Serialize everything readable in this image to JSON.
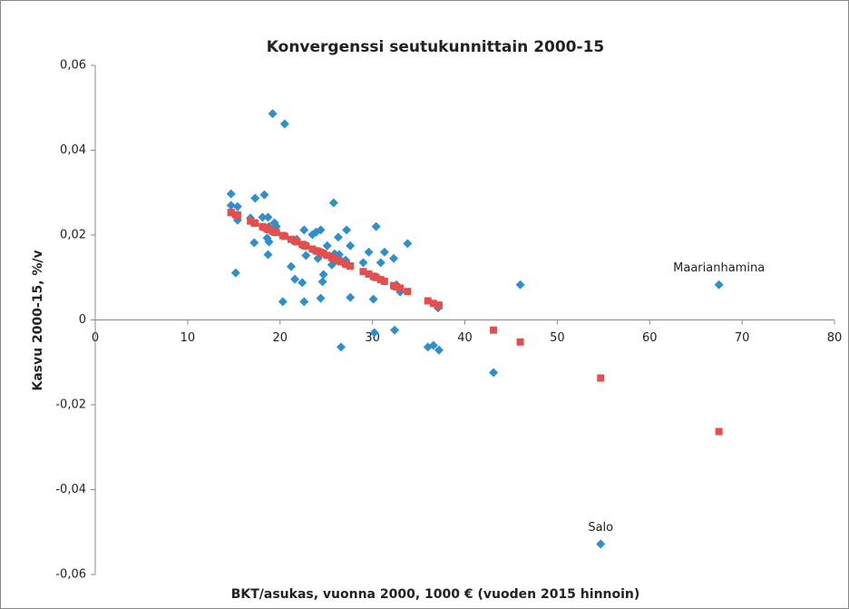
{
  "chart_data": {
    "type": "scatter",
    "title": "Konvergenssi seutukunnittain 2000-15",
    "x_label": "BKT/asukas, vuonna 2000, 1000 € (vuoden 2015 hinnoin)",
    "y_label": "Kasvu 2000-15, %/v",
    "xlim": [
      0,
      80
    ],
    "xticks": [
      0,
      10,
      20,
      30,
      40,
      50,
      60,
      70,
      80
    ],
    "ylim": [
      -0.06,
      0.06
    ],
    "yticks": [
      {
        "value": -0.06,
        "label": "-0,06"
      },
      {
        "value": -0.04,
        "label": "-0,04"
      },
      {
        "value": -0.02,
        "label": "-0,02"
      },
      {
        "value": 0,
        "label": "0"
      },
      {
        "value": 0.02,
        "label": "0,02"
      },
      {
        "value": 0.04,
        "label": "0,04"
      },
      {
        "value": 0.06,
        "label": "0,06"
      }
    ],
    "grid": false,
    "series": [
      {
        "color": "#2e8fca",
        "marker": "diamond",
        "x": [
          14.7,
          14.7,
          15.4,
          15.4,
          15.2,
          16.8,
          17.3,
          17.2,
          18.3,
          18.1,
          18.7,
          18.8,
          18.6,
          18.8,
          18.7,
          19.2,
          19.6,
          19.4,
          20.5,
          20.3,
          21.2,
          21.6,
          21.8,
          22.6,
          22.4,
          22.6,
          22.8,
          23.5,
          23.9,
          24.1,
          24.4,
          24.6,
          24.7,
          24.4,
          25.1,
          25.6,
          25.9,
          25.8,
          26.3,
          26.4,
          26.6,
          27.1,
          27.2,
          27.6,
          27.6,
          29.0,
          29.6,
          30.1,
          30.4,
          30.2,
          30.9,
          31.3,
          32.3,
          32.4,
          32.6,
          33.0,
          33.8,
          36.0,
          36.6,
          37.1,
          37.2,
          43.1,
          46.0,
          54.7,
          67.5
        ],
        "values": [
          0.0297,
          0.027,
          0.0267,
          0.0235,
          0.0111,
          0.024,
          0.0287,
          0.0182,
          0.0295,
          0.0242,
          0.0242,
          0.022,
          0.0193,
          0.0184,
          0.0154,
          0.0486,
          0.022,
          0.0229,
          0.0462,
          0.0043,
          0.0126,
          0.0096,
          0.019,
          0.0212,
          0.0088,
          0.0043,
          0.0152,
          0.0201,
          0.0207,
          0.0145,
          0.0212,
          0.009,
          0.0107,
          0.0051,
          0.0175,
          0.013,
          0.0156,
          0.0276,
          0.0195,
          0.0154,
          -0.0064,
          0.0141,
          0.0212,
          0.0175,
          0.0053,
          0.0135,
          0.016,
          0.0049,
          0.022,
          -0.003,
          0.0135,
          0.016,
          0.0145,
          -0.0024,
          0.0083,
          0.0066,
          0.018,
          -0.0064,
          -0.006,
          0.0028,
          -0.0071,
          -0.0124,
          0.0083,
          -0.0528,
          0.0083
        ]
      },
      {
        "color": "#e0504f",
        "marker": "square",
        "x": [
          14.7,
          14.7,
          15.4,
          15.4,
          15.2,
          16.8,
          17.3,
          17.2,
          18.3,
          18.1,
          18.7,
          18.8,
          18.6,
          18.8,
          18.7,
          19.2,
          19.6,
          19.4,
          20.5,
          20.3,
          21.2,
          21.6,
          21.8,
          22.6,
          22.4,
          22.6,
          22.8,
          23.5,
          23.9,
          24.1,
          24.4,
          24.6,
          24.7,
          24.4,
          25.1,
          25.6,
          25.9,
          25.8,
          26.3,
          26.4,
          26.6,
          27.1,
          27.2,
          27.6,
          27.6,
          29.0,
          29.6,
          30.1,
          30.4,
          30.2,
          30.9,
          31.3,
          32.3,
          32.4,
          32.6,
          33.0,
          33.8,
          36.0,
          36.6,
          37.1,
          37.2,
          43.1,
          46.0,
          54.7,
          67.5
        ],
        "values": [
          0.0253,
          0.0253,
          0.0247,
          0.0247,
          0.0248,
          0.0233,
          0.0228,
          0.0229,
          0.0218,
          0.022,
          0.0214,
          0.0213,
          0.0215,
          0.0213,
          0.0214,
          0.0209,
          0.0206,
          0.0207,
          0.0197,
          0.0199,
          0.019,
          0.0186,
          0.0184,
          0.0176,
          0.0178,
          0.0176,
          0.0174,
          0.0167,
          0.0163,
          0.0162,
          0.0159,
          0.0157,
          0.0156,
          0.0159,
          0.0152,
          0.0147,
          0.0144,
          0.0145,
          0.014,
          0.0139,
          0.0137,
          0.0132,
          0.0131,
          0.0127,
          0.0127,
          0.0114,
          0.0108,
          0.0103,
          0.01,
          0.0102,
          0.0095,
          0.0091,
          0.0081,
          0.008,
          0.0078,
          0.0075,
          0.0067,
          0.0045,
          0.0039,
          0.0035,
          0.0034,
          -0.0024,
          -0.0052,
          -0.0137,
          -0.0263
        ]
      }
    ],
    "annotations": [
      {
        "text": "Maarianhamina",
        "x": 67.5,
        "y": 0.0083
      },
      {
        "text": "Salo",
        "x": 54.7,
        "y": -0.0528
      }
    ]
  }
}
